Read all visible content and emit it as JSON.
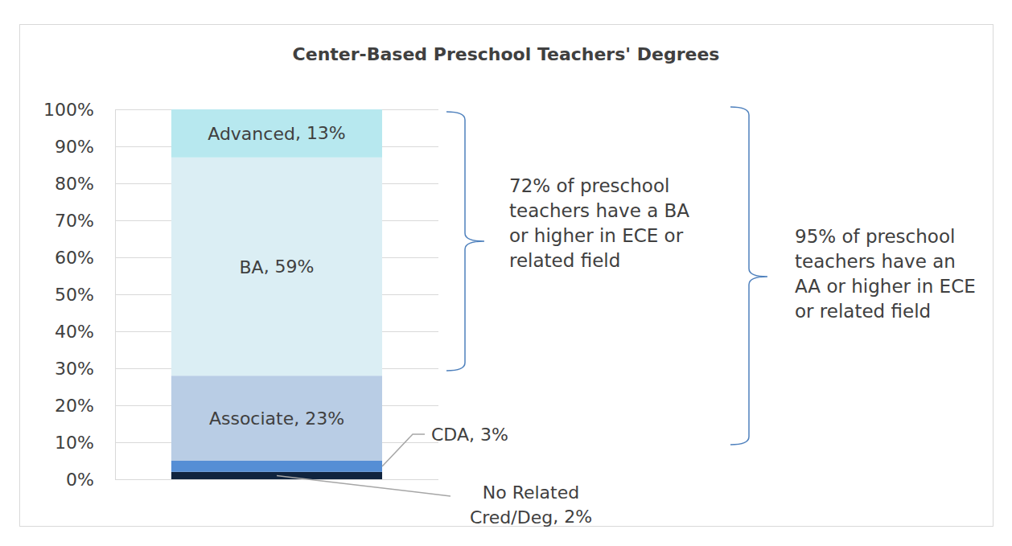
{
  "chart_data": {
    "type": "bar",
    "title": "Center-Based Preschool Teachers' Degrees",
    "stacked": true,
    "data_labels": true,
    "grid": true,
    "tick_labels": "y",
    "categories": [
      null
    ],
    "series": [
      {
        "name": "No Related Cred/Deg",
        "color": "#10243e",
        "values": [
          2
        ],
        "value_labels": [
          "2%"
        ]
      },
      {
        "name": "CDA",
        "color": "#558ed5",
        "values": [
          3
        ],
        "value_labels": [
          "3%"
        ]
      },
      {
        "name": "Associate",
        "color": "#b9cde5",
        "values": [
          23
        ],
        "value_labels": [
          "23%"
        ]
      },
      {
        "name": "BA",
        "color": "#dbeef4",
        "values": [
          59
        ],
        "value_labels": [
          "59%"
        ]
      },
      {
        "name": "Advanced",
        "color": "#b7e8ef",
        "values": [
          13
        ],
        "value_labels": [
          "13%"
        ]
      }
    ],
    "ylim": [
      0,
      100
    ],
    "yticks": [
      {
        "value": 0,
        "label": "0%"
      },
      {
        "value": 10,
        "label": "10%"
      },
      {
        "value": 20,
        "label": "20%"
      },
      {
        "value": 30,
        "label": "30%"
      },
      {
        "value": 40,
        "label": "40%"
      },
      {
        "value": 50,
        "label": "50%"
      },
      {
        "value": 60,
        "label": "60%"
      },
      {
        "value": 70,
        "label": "70%"
      },
      {
        "value": 80,
        "label": "80%"
      },
      {
        "value": 90,
        "label": "90%"
      },
      {
        "value": 100,
        "label": "100%"
      }
    ],
    "annotations": [
      "72% of preschool teachers have a BA or higher in ECE or related field",
      "95% of preschool teachers have an AA or higher in ECE or related field"
    ]
  }
}
